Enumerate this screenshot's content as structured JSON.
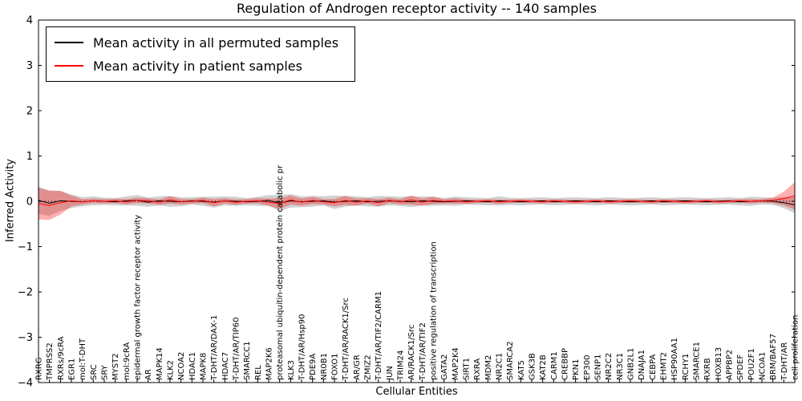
{
  "chart_data": {
    "type": "line",
    "title": "Regulation of Androgen receptor activity -- 140 samples",
    "xlabel": "Cellular Entities",
    "ylabel": "Inferred Activity",
    "ylim": [
      -4,
      4
    ],
    "grid": false,
    "legend_position": "upper left",
    "zero_line": {
      "style": "dotted",
      "color": "#000000"
    },
    "yticks": [
      {
        "value": 4,
        "label": "4"
      },
      {
        "value": 3,
        "label": "3"
      },
      {
        "value": 2,
        "label": "2"
      },
      {
        "value": 1,
        "label": "1"
      },
      {
        "value": 0,
        "label": "0"
      },
      {
        "value": -1,
        "label": "−1"
      },
      {
        "value": -2,
        "label": "−2"
      },
      {
        "value": -3,
        "label": "−3"
      },
      {
        "value": -4,
        "label": "−4"
      }
    ],
    "legend": [
      {
        "label": "Mean activity in all permuted samples",
        "color": "#000000"
      },
      {
        "label": "Mean activity in patient samples",
        "color": "#ff0000"
      }
    ],
    "categories": [
      "RXRG",
      "TMPRSS2",
      "RXRs/9cRA",
      "EGR1",
      "mol:T-DHT",
      "SRC",
      "SRY",
      "MYST2",
      "mol:9cRA",
      "epidermal growth factor receptor activity",
      "AR",
      "MAPK14",
      "KLK2",
      "NCOA2",
      "HDAC1",
      "MAPK8",
      "T-DHT/AR/DAX-1",
      "HDAC7",
      "T-DHT/AR/TIP60",
      "SMARCC1",
      "REL",
      "MAP2K6",
      "proteasomal ubiquitin-dependent protein catabolic pr",
      "KLK3",
      "T-DHT/AR/Hsp90",
      "PDE9A",
      "NR0B1",
      "FOXO1",
      "T-DHT/AR/RACK1/Src",
      "AR/GR",
      "ZMIZ2",
      "T-DHT/AR/TIF2/CARM1",
      "JUN",
      "TRIM24",
      "AR/RACK1/Src",
      "T-DHT/AR/TIF2",
      "positive regulation of transcription",
      "GATA2",
      "MAP2K4",
      "SIRT1",
      "RXRA",
      "MDM2",
      "NR2C1",
      "SMARCA2",
      "KAT5",
      "GSK3B",
      "KAT2B",
      "CARM1",
      "CREBBP",
      "PKN1",
      "EP300",
      "SENP1",
      "NR2C2",
      "NR3C1",
      "GNB2L1",
      "DNAJA1",
      "CEBPA",
      "EHMT2",
      "HSP90AA1",
      "RCHY1",
      "SMARCE1",
      "RXRB",
      "HOXB13",
      "APPBP2",
      "SPDEF",
      "POU2F1",
      "NCOA1",
      "BRM/BAF57",
      "T-DHT/AR",
      "cell proliferation"
    ],
    "series": [
      {
        "name": "Mean activity in all permuted samples",
        "color": "#000000",
        "band_color": "rgba(0,0,0,0.18)",
        "values": [
          0.02,
          -0.04,
          0.01,
          0.0,
          -0.01,
          0.01,
          0.0,
          -0.01,
          0.01,
          0.02,
          -0.02,
          0.01,
          0.0,
          -0.01,
          0.01,
          0.0,
          -0.02,
          0.01,
          0.0,
          -0.01,
          0.0,
          0.02,
          -0.04,
          0.01,
          -0.01,
          0.0,
          0.01,
          -0.02,
          0.0,
          0.01,
          -0.01,
          0.0,
          0.01,
          0.0,
          -0.01,
          0.01,
          0.0,
          -0.01,
          0.0,
          0.01,
          0.0,
          -0.01,
          0.01,
          0.0,
          -0.01,
          0.0,
          0.01,
          -0.01,
          0.0,
          0.01,
          0.0,
          -0.01,
          0.01,
          0.0,
          -0.01,
          0.0,
          0.01,
          -0.01,
          0.0,
          0.01,
          0.0,
          -0.01,
          0.0,
          0.01,
          -0.01,
          0.0,
          0.01,
          0.0,
          -0.03,
          -0.08
        ],
        "band_halfwidth": [
          0.3,
          0.28,
          0.22,
          0.15,
          0.1,
          0.1,
          0.08,
          0.08,
          0.1,
          0.12,
          0.1,
          0.1,
          0.12,
          0.1,
          0.08,
          0.1,
          0.12,
          0.1,
          0.1,
          0.08,
          0.1,
          0.12,
          0.18,
          0.15,
          0.12,
          0.12,
          0.1,
          0.15,
          0.12,
          0.1,
          0.1,
          0.12,
          0.1,
          0.1,
          0.12,
          0.1,
          0.1,
          0.08,
          0.1,
          0.08,
          0.08,
          0.08,
          0.1,
          0.08,
          0.08,
          0.08,
          0.08,
          0.08,
          0.08,
          0.08,
          0.08,
          0.08,
          0.08,
          0.08,
          0.08,
          0.08,
          0.08,
          0.08,
          0.08,
          0.08,
          0.08,
          0.08,
          0.08,
          0.08,
          0.08,
          0.1,
          0.08,
          0.08,
          0.12,
          0.18
        ]
      },
      {
        "name": "Mean activity in patient samples",
        "color": "#ff0000",
        "band_color": "rgba(255,0,0,0.32)",
        "values": [
          -0.05,
          -0.09,
          -0.03,
          0.01,
          -0.01,
          0.01,
          0.0,
          0.01,
          -0.01,
          0.02,
          0.01,
          -0.02,
          0.03,
          -0.01,
          0.0,
          0.02,
          -0.03,
          0.01,
          -0.02,
          0.0,
          0.01,
          -0.02,
          -0.05,
          0.03,
          -0.02,
          0.02,
          -0.01,
          -0.03,
          0.02,
          -0.02,
          0.01,
          -0.03,
          0.02,
          -0.01,
          0.03,
          -0.02,
          0.02,
          0.0,
          0.01,
          -0.01,
          0.0,
          0.01,
          -0.01,
          0.0,
          0.01,
          0.0,
          -0.01,
          0.01,
          0.0,
          -0.01,
          0.0,
          0.01,
          -0.01,
          0.0,
          0.01,
          0.0,
          -0.01,
          0.01,
          0.0,
          -0.01,
          0.0,
          0.01,
          -0.01,
          0.0,
          0.01,
          0.0,
          0.01,
          0.02,
          0.06,
          0.12
        ],
        "band_halfwidth": [
          0.35,
          0.32,
          0.26,
          0.12,
          0.06,
          0.05,
          0.05,
          0.05,
          0.06,
          0.06,
          0.06,
          0.06,
          0.08,
          0.06,
          0.05,
          0.06,
          0.08,
          0.06,
          0.06,
          0.05,
          0.06,
          0.08,
          0.12,
          0.1,
          0.08,
          0.08,
          0.06,
          0.08,
          0.1,
          0.08,
          0.06,
          0.08,
          0.06,
          0.06,
          0.1,
          0.08,
          0.08,
          0.05,
          0.06,
          0.05,
          0.04,
          0.04,
          0.05,
          0.04,
          0.04,
          0.04,
          0.04,
          0.04,
          0.04,
          0.04,
          0.04,
          0.04,
          0.04,
          0.04,
          0.04,
          0.04,
          0.04,
          0.04,
          0.04,
          0.04,
          0.04,
          0.04,
          0.04,
          0.04,
          0.04,
          0.05,
          0.04,
          0.06,
          0.15,
          0.3
        ]
      }
    ]
  }
}
